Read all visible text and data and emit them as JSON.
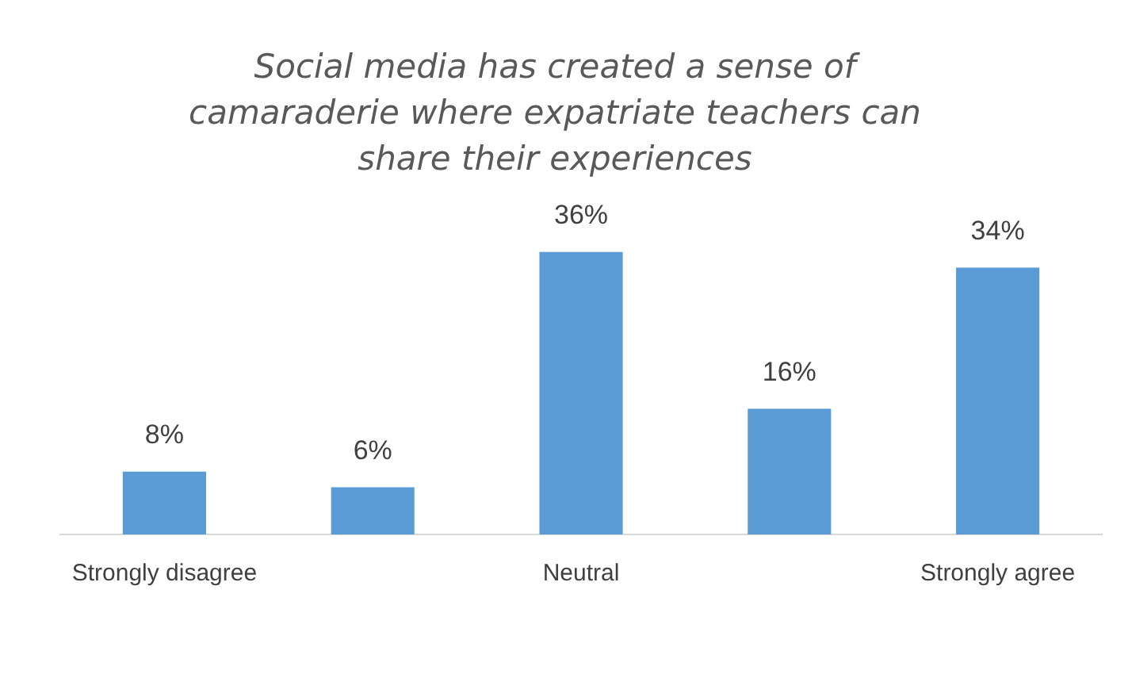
{
  "chart_data": {
    "type": "bar",
    "title": "Social media has created a sense of camaraderie where expatriate teachers can share their experiences",
    "categories": [
      "Strongly disagree",
      null,
      "Neutral",
      null,
      "Strongly agree"
    ],
    "values": [
      8,
      6,
      36,
      16,
      34
    ],
    "value_labels": [
      "8%",
      "6%",
      "36%",
      "16%",
      "34%"
    ],
    "color": "#5b9bd5",
    "grid": false,
    "legend": false
  }
}
